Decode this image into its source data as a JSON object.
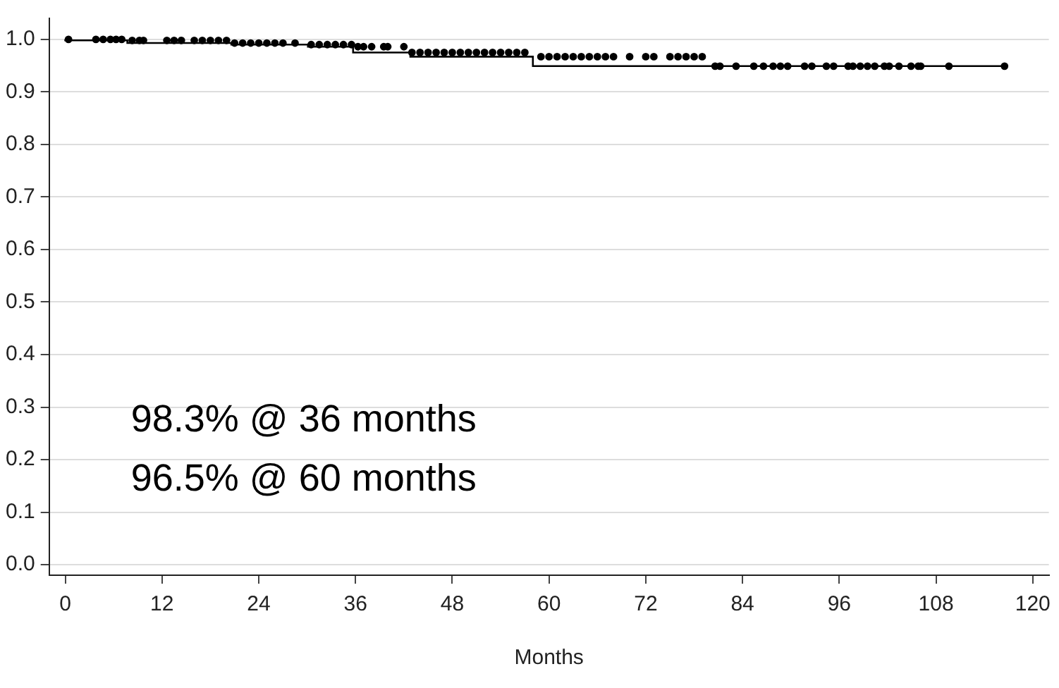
{
  "chart_data": {
    "type": "step",
    "xlabel": "Months",
    "xlim": [
      -2,
      122
    ],
    "xticks": [
      0,
      12,
      24,
      36,
      48,
      60,
      72,
      84,
      96,
      108,
      120
    ],
    "ylim": [
      -0.02,
      1.04
    ],
    "yticks": [
      {
        "value": 0,
        "label": "0.0"
      },
      0.1,
      0.2,
      0.3,
      0.4,
      0.5,
      0.6,
      0.7,
      0.8,
      0.9,
      {
        "value": 1,
        "label": "1.0"
      }
    ],
    "grid": "y",
    "legend": false,
    "series": [
      {
        "type": "step",
        "color": "#000000",
        "marker": "none",
        "x": [
          0,
          7.7,
          20.6,
          30.1,
          35.7,
          42.8,
          58,
          79.2,
          116.5
        ],
        "values": [
          1,
          0.998,
          0.993,
          0.99,
          0.986,
          0.975,
          0.967,
          0.949,
          0.949
        ]
      },
      {
        "type": "scatter",
        "color": "#000000",
        "marker": "circle",
        "x": [
          0.4,
          3.8,
          4.7,
          5.6,
          6.3,
          7,
          8.3,
          9.2,
          9.7,
          12.6,
          13.5,
          14.4,
          16,
          17,
          18,
          19,
          20,
          21,
          22,
          23,
          24,
          25,
          26,
          27,
          28.5,
          30.5,
          31.5,
          32.5,
          33.5,
          34.5,
          35.5,
          36.3,
          37,
          38,
          39.5,
          40,
          42,
          43,
          44,
          45,
          46,
          47,
          48,
          49,
          50,
          51,
          52,
          53,
          54,
          55,
          56,
          57,
          59,
          60,
          61,
          62,
          63,
          64,
          65,
          66,
          67,
          68,
          70,
          72,
          73,
          75,
          76,
          77,
          78,
          79,
          80.6,
          81.2,
          83.2,
          85.4,
          86.6,
          87.8,
          88.7,
          89.6,
          91.7,
          92.6,
          94.4,
          95.3,
          97.1,
          97.7,
          98.6,
          99.5,
          100.4,
          101.6,
          102.2,
          103.4,
          104.9,
          105.8,
          106.1,
          109.6,
          116.5
        ],
        "values": [
          1,
          1,
          1,
          1,
          1,
          1,
          0.998,
          0.998,
          0.998,
          0.998,
          0.998,
          0.998,
          0.998,
          0.998,
          0.998,
          0.998,
          0.998,
          0.993,
          0.993,
          0.993,
          0.993,
          0.993,
          0.993,
          0.993,
          0.993,
          0.99,
          0.99,
          0.99,
          0.99,
          0.99,
          0.99,
          0.986,
          0.986,
          0.986,
          0.986,
          0.986,
          0.986,
          0.975,
          0.975,
          0.975,
          0.975,
          0.975,
          0.975,
          0.975,
          0.975,
          0.975,
          0.975,
          0.975,
          0.975,
          0.975,
          0.975,
          0.975,
          0.967,
          0.967,
          0.967,
          0.967,
          0.967,
          0.967,
          0.967,
          0.967,
          0.967,
          0.967,
          0.967,
          0.967,
          0.967,
          0.967,
          0.967,
          0.967,
          0.967,
          0.967,
          0.949,
          0.949,
          0.949,
          0.949,
          0.949,
          0.949,
          0.949,
          0.949,
          0.949,
          0.949,
          0.949,
          0.949,
          0.949,
          0.949,
          0.949,
          0.949,
          0.949,
          0.949,
          0.949,
          0.949,
          0.949,
          0.949,
          0.949,
          0.949,
          0.949
        ]
      }
    ],
    "annotations": [
      "98.3% @ 36 months",
      "96.5% @ 60 months"
    ]
  }
}
